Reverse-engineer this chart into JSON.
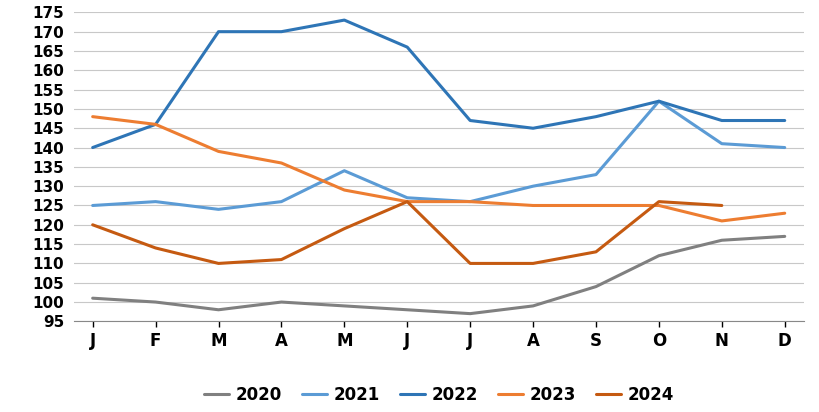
{
  "months": [
    "J",
    "F",
    "M",
    "A",
    "M",
    "J",
    "J",
    "A",
    "S",
    "O",
    "N",
    "D"
  ],
  "series": {
    "2020": [
      101,
      100,
      98,
      100,
      99,
      98,
      97,
      99,
      104,
      112,
      116,
      117
    ],
    "2021": [
      125,
      126,
      124,
      126,
      134,
      127,
      126,
      130,
      133,
      152,
      141,
      140
    ],
    "2022": [
      140,
      146,
      170,
      170,
      173,
      166,
      147,
      145,
      148,
      152,
      147,
      147
    ],
    "2023": [
      148,
      146,
      139,
      136,
      129,
      126,
      126,
      125,
      125,
      125,
      121,
      123
    ],
    "2024": [
      120,
      114,
      110,
      111,
      119,
      126,
      110,
      110,
      113,
      126,
      125,
      null
    ]
  },
  "colors": {
    "2020": "#808080",
    "2021": "#5B9BD5",
    "2022": "#2E75B6",
    "2023": "#ED7D31",
    "2024": "#C55A11"
  },
  "ylim": [
    95,
    175
  ],
  "yticks": [
    95,
    100,
    105,
    110,
    115,
    120,
    125,
    130,
    135,
    140,
    145,
    150,
    155,
    160,
    165,
    170,
    175
  ],
  "background_color": "#ffffff",
  "grid_color": "#c8c8c8",
  "legend_order": [
    "2020",
    "2021",
    "2022",
    "2023",
    "2024"
  ],
  "linewidth": 2.2
}
